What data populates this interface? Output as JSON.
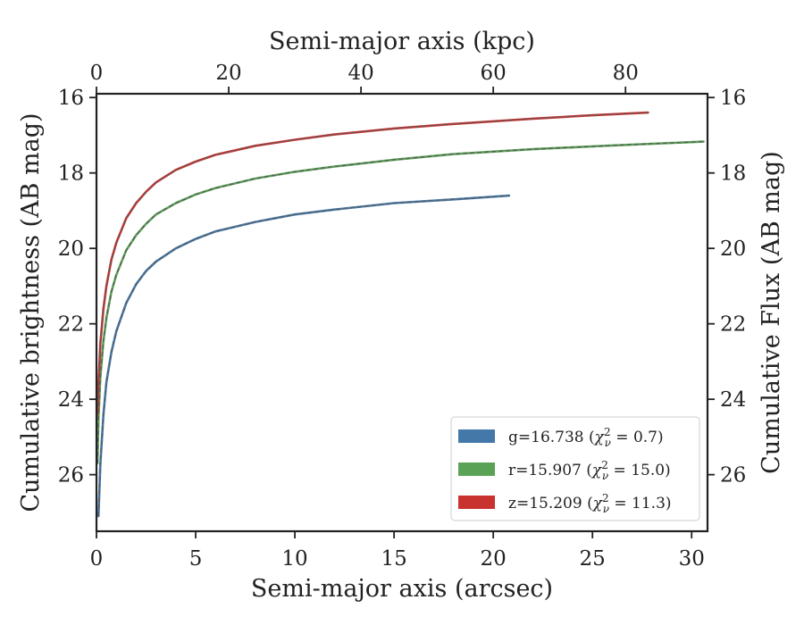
{
  "chart_data": {
    "type": "line",
    "xlabel": "Semi-major axis (arcsec)",
    "x2label": "Semi-major axis (kpc)",
    "ylabel": "Cumulative brightness (AB mag)",
    "y2label": "Cumulative Flux (AB mag)",
    "xlim": [
      0,
      30.8
    ],
    "ylim": [
      27.5,
      15.9
    ],
    "y_inverted": true,
    "x2lim": [
      0,
      92.4
    ],
    "x_ticks": [
      0,
      5,
      10,
      15,
      20,
      25,
      30
    ],
    "x_tick_labels": [
      "0",
      "5",
      "10",
      "15",
      "20",
      "25",
      "30"
    ],
    "x2_ticks": [
      0,
      20,
      40,
      60,
      80
    ],
    "x2_tick_labels": [
      "0",
      "20",
      "40",
      "60",
      "80"
    ],
    "y_ticks": [
      16,
      18,
      20,
      22,
      24,
      26
    ],
    "y_tick_labels": [
      "16",
      "18",
      "20",
      "22",
      "24",
      "26"
    ],
    "legend_position": "lower right",
    "series": [
      {
        "name": "g=16.738 (χ²ν = 0.7)",
        "legend_main": "g=16.738 (",
        "legend_chi": "χ",
        "legend_sup": "2",
        "legend_sub": "ν",
        "legend_value": " = 0.7)",
        "color": "#4478a8",
        "model_color": "#5b5b5b",
        "x": [
          0.1,
          0.2,
          0.35,
          0.5,
          0.75,
          1.0,
          1.5,
          2.0,
          2.5,
          3.0,
          4.0,
          5.0,
          6.0,
          8.0,
          10.0,
          12.0,
          15.0,
          18.0,
          20.8
        ],
        "y": [
          27.1,
          25.7,
          24.4,
          23.55,
          22.75,
          22.2,
          21.45,
          20.95,
          20.6,
          20.35,
          20.0,
          19.75,
          19.55,
          19.3,
          19.1,
          18.97,
          18.8,
          18.7,
          18.6
        ]
      },
      {
        "name": "r=15.907 (χ²ν = 15.0)",
        "legend_main": "r=15.907 (",
        "legend_chi": "χ",
        "legend_sup": "2",
        "legend_sub": "ν",
        "legend_value": " = 15.0)",
        "color": "#5aa356",
        "model_color": "#5b5b5b",
        "x": [
          0.05,
          0.1,
          0.2,
          0.35,
          0.5,
          0.75,
          1.0,
          1.5,
          2.0,
          2.5,
          3.0,
          4.0,
          5.0,
          6.0,
          8.0,
          10.0,
          12.0,
          15.0,
          18.0,
          22.0,
          26.0,
          30.6
        ],
        "y": [
          25.7,
          24.5,
          23.4,
          22.45,
          21.85,
          21.15,
          20.7,
          20.05,
          19.65,
          19.35,
          19.1,
          18.8,
          18.57,
          18.4,
          18.15,
          17.97,
          17.83,
          17.65,
          17.5,
          17.37,
          17.27,
          17.17
        ]
      },
      {
        "name": "z=15.209 (χ²ν = 11.3)",
        "legend_main": "z=15.209 (",
        "legend_chi": "χ",
        "legend_sup": "2",
        "legend_sub": "ν",
        "legend_value": " = 11.3)",
        "color": "#c8322f",
        "model_color": "#5b5b5b",
        "x": [
          0.05,
          0.1,
          0.2,
          0.35,
          0.5,
          0.75,
          1.0,
          1.5,
          2.0,
          2.5,
          3.0,
          4.0,
          5.0,
          6.0,
          8.0,
          10.0,
          12.0,
          15.0,
          18.0,
          22.0,
          25.0,
          27.8
        ],
        "y": [
          24.4,
          23.6,
          22.5,
          21.6,
          21.0,
          20.3,
          19.85,
          19.2,
          18.8,
          18.5,
          18.25,
          17.92,
          17.7,
          17.52,
          17.28,
          17.12,
          16.98,
          16.82,
          16.7,
          16.56,
          16.47,
          16.4
        ]
      }
    ]
  }
}
